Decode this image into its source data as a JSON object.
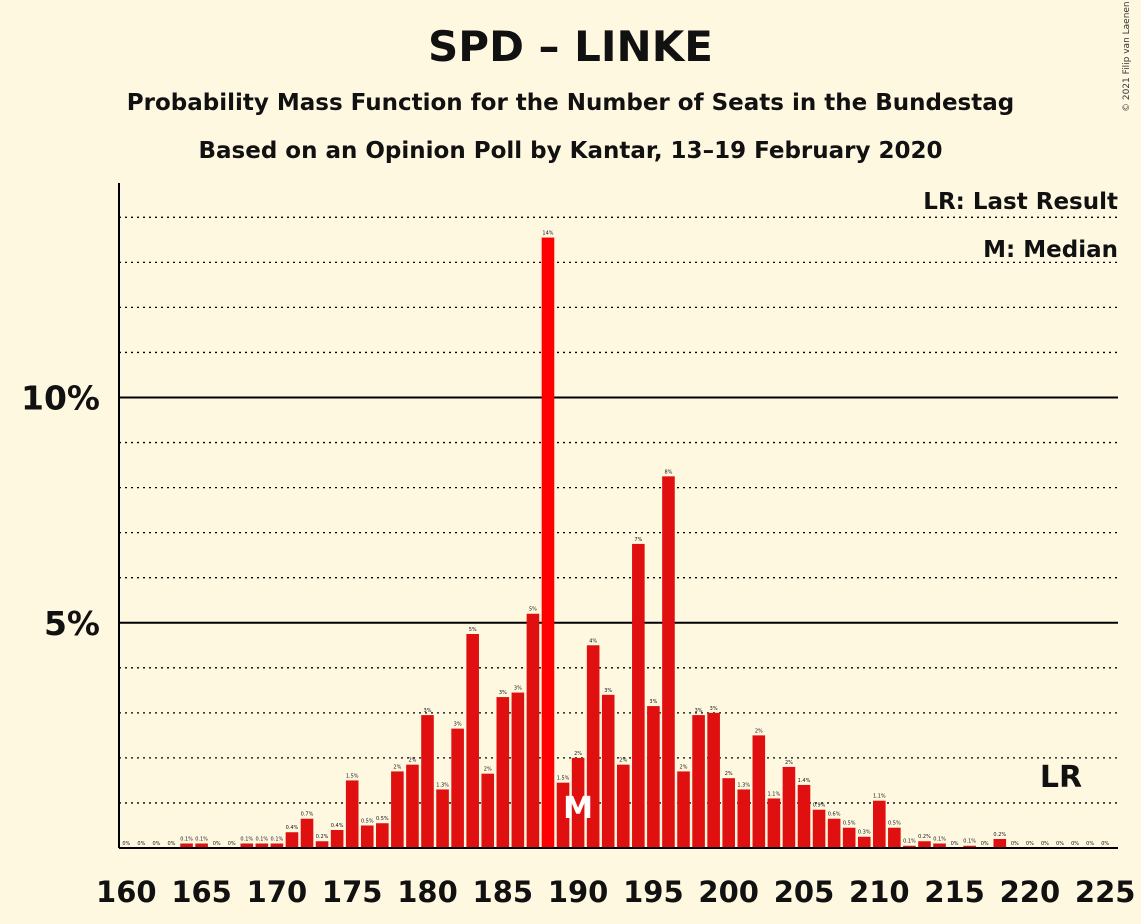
{
  "header": {
    "title": "SPD – LINKE",
    "subtitle1": "Probability Mass Function for the Number of Seats in the Bundestag",
    "subtitle2": "Based on an Opinion Poll by Kantar, 13–19 February 2020",
    "copyright": "© 2021 Filip van Laenen"
  },
  "chart_data": {
    "type": "bar",
    "title": "SPD – LINKE",
    "subtitle": "Probability Mass Function for the Number of Seats in the Bundestag",
    "xlabel": "",
    "ylabel": "",
    "x": [
      160,
      161,
      162,
      163,
      164,
      165,
      166,
      167,
      168,
      169,
      170,
      171,
      172,
      173,
      174,
      175,
      176,
      177,
      178,
      179,
      180,
      181,
      182,
      183,
      184,
      185,
      186,
      187,
      188,
      189,
      190,
      191,
      192,
      193,
      194,
      195,
      196,
      197,
      198,
      199,
      200,
      201,
      202,
      203,
      204,
      205,
      206,
      207,
      208,
      209,
      210,
      211,
      212,
      213,
      214,
      215,
      216,
      217,
      218,
      219,
      220,
      221,
      222,
      223,
      224,
      225
    ],
    "values": [
      0,
      0,
      0,
      0,
      0.1,
      0.1,
      0,
      0,
      0.1,
      0.1,
      0.1,
      0.35,
      0.65,
      0.15,
      0.4,
      1.5,
      0.5,
      0.55,
      1.7,
      1.85,
      2.95,
      1.3,
      2.65,
      4.75,
      1.65,
      3.35,
      3.45,
      5.2,
      13.55,
      1.45,
      2.0,
      4.5,
      3.4,
      1.85,
      6.75,
      3.15,
      8.25,
      1.7,
      2.95,
      3.0,
      1.55,
      1.3,
      2.5,
      1.1,
      1.8,
      1.4,
      0.85,
      0.65,
      0.45,
      0.25,
      1.05,
      0.45,
      0.05,
      0.15,
      0.1,
      0,
      0.05,
      0,
      0.2,
      0,
      0,
      0,
      0,
      0,
      0,
      0
    ],
    "data_labels": [
      "0%",
      "0%",
      "0%",
      "0%",
      "0.1%",
      "0.1%",
      "0%",
      "0%",
      "0.1%",
      "0.1%",
      "0.1%",
      "0.4%",
      "0.7%",
      "0.2%",
      "0.4%",
      "1.5%",
      "0.5%",
      "0.5%",
      "2%",
      "2%",
      "3%",
      "1.3%",
      "3%",
      "5%",
      "2%",
      "3%",
      "3%",
      "5%",
      "14%",
      "1.5%",
      "2%",
      "4%",
      "3%",
      "2%",
      "7%",
      "3%",
      "8%",
      "2%",
      "3%",
      "3%",
      "2%",
      "1.3%",
      "2%",
      "1.1%",
      "2%",
      "1.4%",
      "0.9%",
      "0.6%",
      "0.5%",
      "0.3%",
      "1.1%",
      "0.5%",
      "0.1%",
      "0.2%",
      "0.1%",
      "0%",
      "0.1%",
      "0%",
      "0.2%",
      "0%",
      "0%",
      "0%",
      "0%",
      "0%",
      "0%",
      "0%"
    ],
    "ylim": [
      0,
      14.7
    ],
    "y_ticks": [
      {
        "value": 5,
        "label": "5%"
      },
      {
        "value": 10,
        "label": "10%"
      }
    ],
    "x_ticks": [
      160,
      165,
      170,
      175,
      180,
      185,
      190,
      195,
      200,
      205,
      210,
      215,
      220,
      225
    ],
    "grid": "dotted lines at every 1%, solid at 5% and 10%",
    "median": {
      "x": 190,
      "label": "M"
    },
    "last_result": {
      "x": 221,
      "label": "LR"
    },
    "highlight_bar": 188,
    "colors": {
      "bar": "#e11010",
      "highlight": "#ff0000",
      "median_marker": "#ffffff",
      "background": "#fff8e1"
    }
  },
  "legend": {
    "last_result": "LR: Last Result",
    "median": "M: Median"
  }
}
